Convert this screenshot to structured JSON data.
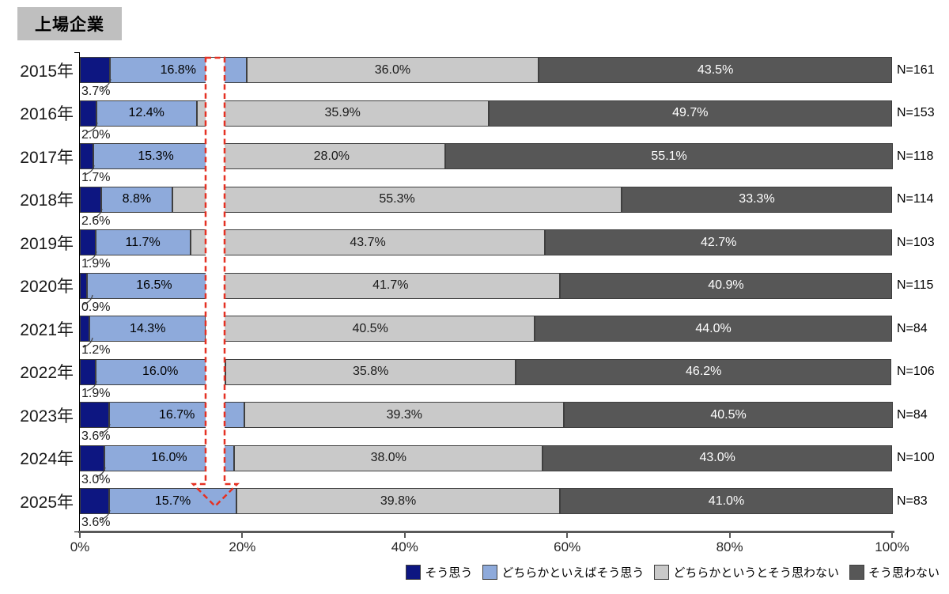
{
  "title": "上場企業",
  "chart_data": {
    "type": "bar",
    "stacked": true,
    "orientation": "horizontal",
    "unit": "%",
    "xlim": [
      0,
      100
    ],
    "x_ticks": [
      "0%",
      "20%",
      "40%",
      "60%",
      "80%",
      "100%"
    ],
    "grid": false,
    "legend_position": "bottom-right",
    "series_labels": [
      "そう思う",
      "どちらかといえばそう思う",
      "どちらかというとそう思わない",
      "そう思わない"
    ],
    "series_colors": [
      "#0d1681",
      "#8eaadb",
      "#c9c9c9",
      "#575757"
    ],
    "series_text_colors": [
      "#000000",
      "#000000",
      "#1a1a1a",
      "#ffffff"
    ],
    "rows": [
      {
        "year": "2015年",
        "values": [
          3.7,
          16.8,
          36.0,
          43.5
        ],
        "n_label": "N=161"
      },
      {
        "year": "2016年",
        "values": [
          2.0,
          12.4,
          35.9,
          49.7
        ],
        "n_label": "N=153"
      },
      {
        "year": "2017年",
        "values": [
          1.7,
          15.3,
          28.0,
          55.1
        ],
        "n_label": "N=118"
      },
      {
        "year": "2018年",
        "values": [
          2.6,
          8.8,
          55.3,
          33.3
        ],
        "n_label": "N=114"
      },
      {
        "year": "2019年",
        "values": [
          1.9,
          11.7,
          43.7,
          42.7
        ],
        "n_label": "N=103"
      },
      {
        "year": "2020年",
        "values": [
          0.9,
          16.5,
          41.7,
          40.9
        ],
        "n_label": "N=115"
      },
      {
        "year": "2021年",
        "values": [
          1.2,
          14.3,
          40.5,
          44.0
        ],
        "n_label": "N=84"
      },
      {
        "year": "2022年",
        "values": [
          1.9,
          16.0,
          35.8,
          46.2
        ],
        "n_label": "N=106"
      },
      {
        "year": "2023年",
        "values": [
          3.6,
          16.7,
          39.3,
          40.5
        ],
        "n_label": "N=84"
      },
      {
        "year": "2024年",
        "values": [
          3.0,
          16.0,
          38.0,
          43.0
        ],
        "n_label": "N=100"
      },
      {
        "year": "2025年",
        "values": [
          3.6,
          15.7,
          39.8,
          41.0
        ],
        "n_label": "N=83"
      }
    ],
    "annotation": {
      "shape": "dashed-down-arrow",
      "color": "#e53123",
      "fill": "#ffffff",
      "points_at_percent": 16.6
    }
  }
}
